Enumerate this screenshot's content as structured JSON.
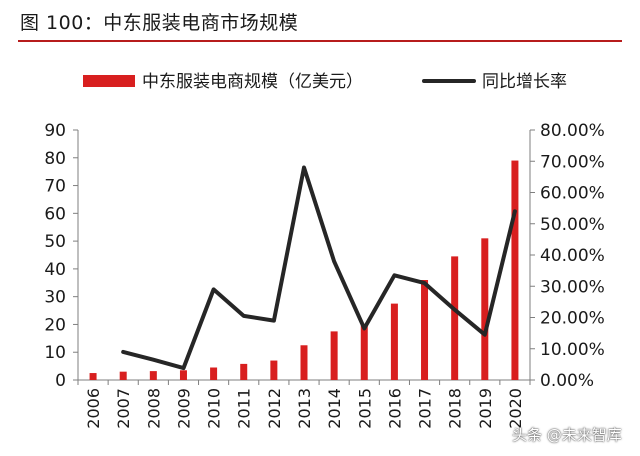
{
  "figure": {
    "title": "图 100：中东服装电商市场规模",
    "watermark": "头条 @未来智库"
  },
  "colors": {
    "bar": "#d81f1f",
    "line": "#262626",
    "title_rule": "#b71c1c"
  },
  "chart_data": {
    "type": "bar",
    "categories": [
      "2006",
      "2007",
      "2008",
      "2009",
      "2010",
      "2011",
      "2012",
      "2013",
      "2014",
      "2015",
      "2016",
      "2017",
      "2018",
      "2019",
      "2020"
    ],
    "series": [
      {
        "name": "中东服装电商规模（亿美元）",
        "type": "bar",
        "axis": "left",
        "values": [
          2.5,
          3,
          3.2,
          3.5,
          4.5,
          5.8,
          7,
          12.5,
          17.5,
          20,
          27.5,
          36,
          44.5,
          51,
          79
        ]
      },
      {
        "name": "同比增长率",
        "type": "line",
        "axis": "right",
        "values": [
          null,
          0.09,
          0.065,
          0.038,
          0.29,
          0.205,
          0.19,
          0.68,
          0.38,
          0.165,
          0.335,
          0.31,
          0.225,
          0.145,
          0.54
        ]
      }
    ],
    "y_left": {
      "lim": [
        0,
        90
      ],
      "ticks": [
        "0",
        "10",
        "20",
        "30",
        "40",
        "50",
        "60",
        "70",
        "80",
        "90"
      ]
    },
    "y_right": {
      "lim": [
        0,
        0.8
      ],
      "ticks": [
        "0.00%",
        "10.00%",
        "20.00%",
        "30.00%",
        "40.00%",
        "50.00%",
        "60.00%",
        "70.00%",
        "80.00%"
      ]
    },
    "legend": {
      "position": "top",
      "entries": [
        "中东服装电商规模（亿美元）",
        "同比增长率"
      ]
    },
    "grid": false
  }
}
